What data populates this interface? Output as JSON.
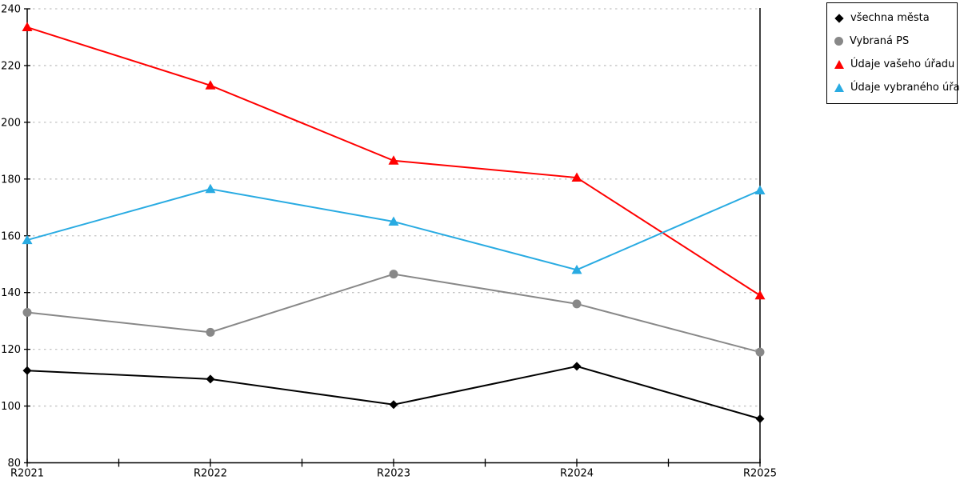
{
  "chart_data": {
    "type": "line",
    "title": "",
    "xlabel": "",
    "ylabel": "",
    "categories": [
      "R2021",
      "R2022",
      "R2023",
      "R2024",
      "R2025"
    ],
    "ylim": [
      80,
      240
    ],
    "y_ticks": [
      80,
      100,
      120,
      140,
      160,
      180,
      200,
      220,
      240
    ],
    "grid": "horizontal-dashed",
    "legend_position": "outside-top-right",
    "series": [
      {
        "name": "všechna města",
        "marker": "diamond",
        "color": "#000000",
        "values": [
          112.5,
          109.5,
          100.5,
          114,
          95.5
        ]
      },
      {
        "name": "Vybraná PS",
        "marker": "circle",
        "color": "#888888",
        "values": [
          133,
          126,
          146.5,
          136,
          119
        ]
      },
      {
        "name": "Údaje vašeho úřadu",
        "marker": "triangle",
        "color": "#ff0000",
        "values": [
          233.5,
          213,
          186.5,
          180.5,
          139
        ]
      },
      {
        "name": "Údaje vybraného úřadu",
        "marker": "triangle",
        "color": "#29abe2",
        "values": [
          158.5,
          176.5,
          165,
          148,
          176
        ]
      }
    ]
  },
  "colors": {
    "axis": "#000000",
    "gridline": "#c3c3c3",
    "background": "#ffffff"
  }
}
